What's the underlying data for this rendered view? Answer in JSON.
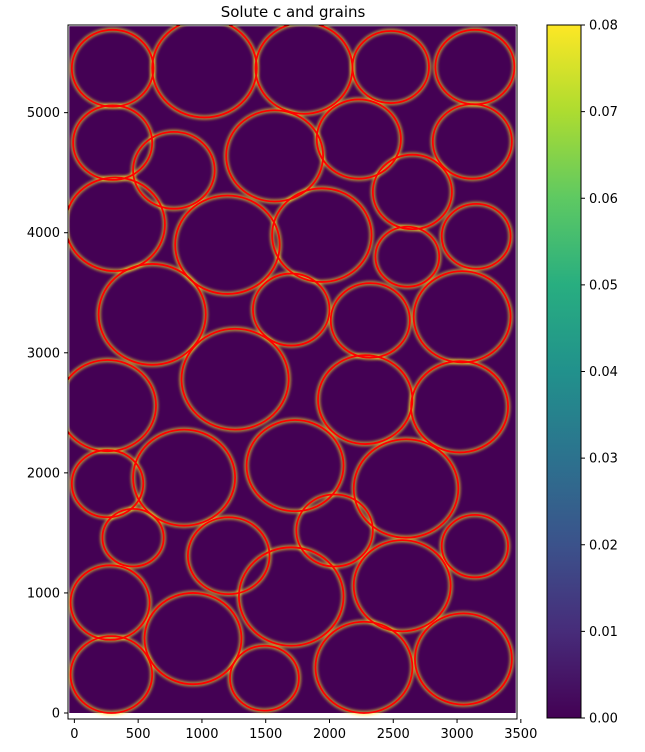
{
  "chart_data": {
    "type": "heatmap",
    "title": "Solute c and grains",
    "xlabel": "",
    "ylabel": "",
    "xlim": [
      -50,
      3470
    ],
    "ylim": [
      -50,
      5730
    ],
    "x_ticks": [
      0,
      500,
      1000,
      1500,
      2000,
      2500,
      3000,
      3500
    ],
    "y_ticks": [
      0,
      1000,
      2000,
      3000,
      4000,
      5000
    ],
    "colorbar": {
      "colormap": "viridis",
      "range": [
        0.0,
        0.08
      ],
      "ticks": [
        "0.00",
        "0.01",
        "0.02",
        "0.03",
        "0.04",
        "0.05",
        "0.06",
        "0.07",
        "0.08"
      ]
    },
    "field_extent": {
      "x": [
        -40,
        3460
      ],
      "y": [
        0,
        5720
      ]
    },
    "background_color": "#440154",
    "boundary_color": "#fde725",
    "grain_outline_color": "#ff0000",
    "grains": [
      {
        "cx": 300,
        "cy": 5370,
        "r": 320
      },
      {
        "cx": 1020,
        "cy": 5370,
        "r": 410
      },
      {
        "cx": 1800,
        "cy": 5370,
        "r": 380
      },
      {
        "cx": 2480,
        "cy": 5380,
        "r": 300
      },
      {
        "cx": 3140,
        "cy": 5380,
        "r": 310
      },
      {
        "cx": 300,
        "cy": 4750,
        "r": 310
      },
      {
        "cx": 780,
        "cy": 4520,
        "r": 320
      },
      {
        "cx": 1570,
        "cy": 4640,
        "r": 380
      },
      {
        "cx": 2230,
        "cy": 4780,
        "r": 330
      },
      {
        "cx": 3120,
        "cy": 4760,
        "r": 310
      },
      {
        "cx": 320,
        "cy": 4070,
        "r": 390
      },
      {
        "cx": 1200,
        "cy": 3900,
        "r": 410
      },
      {
        "cx": 1940,
        "cy": 3980,
        "r": 390
      },
      {
        "cx": 2650,
        "cy": 4340,
        "r": 310
      },
      {
        "cx": 2610,
        "cy": 3800,
        "r": 250
      },
      {
        "cx": 3150,
        "cy": 3970,
        "r": 270
      },
      {
        "cx": 610,
        "cy": 3320,
        "r": 420
      },
      {
        "cx": 1700,
        "cy": 3360,
        "r": 300
      },
      {
        "cx": 2320,
        "cy": 3270,
        "r": 310
      },
      {
        "cx": 3040,
        "cy": 3300,
        "r": 380
      },
      {
        "cx": 260,
        "cy": 2560,
        "r": 380
      },
      {
        "cx": 1260,
        "cy": 2780,
        "r": 420
      },
      {
        "cx": 2280,
        "cy": 2610,
        "r": 370
      },
      {
        "cx": 3020,
        "cy": 2550,
        "r": 380
      },
      {
        "cx": 860,
        "cy": 1960,
        "r": 400
      },
      {
        "cx": 260,
        "cy": 1910,
        "r": 280
      },
      {
        "cx": 1730,
        "cy": 2060,
        "r": 380
      },
      {
        "cx": 2600,
        "cy": 1870,
        "r": 410
      },
      {
        "cx": 460,
        "cy": 1460,
        "r": 240
      },
      {
        "cx": 1210,
        "cy": 1310,
        "r": 320
      },
      {
        "cx": 2040,
        "cy": 1520,
        "r": 300
      },
      {
        "cx": 3140,
        "cy": 1390,
        "r": 260
      },
      {
        "cx": 280,
        "cy": 920,
        "r": 310
      },
      {
        "cx": 930,
        "cy": 620,
        "r": 380
      },
      {
        "cx": 1700,
        "cy": 970,
        "r": 410
      },
      {
        "cx": 2570,
        "cy": 1060,
        "r": 380
      },
      {
        "cx": 290,
        "cy": 320,
        "r": 320
      },
      {
        "cx": 1490,
        "cy": 290,
        "r": 270
      },
      {
        "cx": 2270,
        "cy": 380,
        "r": 380
      },
      {
        "cx": 3050,
        "cy": 450,
        "r": 380
      }
    ]
  }
}
